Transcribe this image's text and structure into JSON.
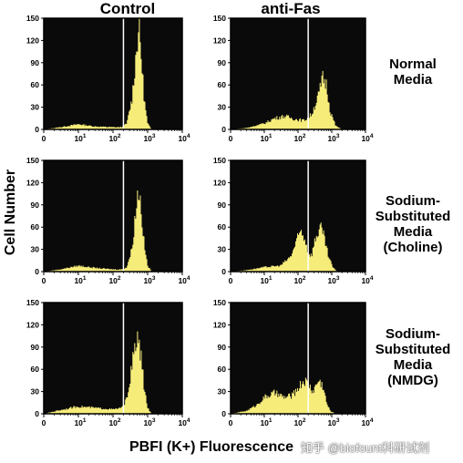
{
  "column_titles": [
    "Control",
    "anti-Fas"
  ],
  "row_labels": [
    "Normal\nMedia",
    "Sodium-\nSubstituted\nMedia\n(Choline)",
    "Sodium-\nSubstituted\nMedia\n(NMDG)"
  ],
  "x_axis_title": "PBFI (K+) Fluorescence",
  "y_axis_title": "Cell Number",
  "watermark": "知乎 @biofount科研试剂",
  "colors": {
    "background": "#0a0a0a",
    "histogram": "#f6ec7a",
    "gate": "#ffffff",
    "frame": "#000000"
  },
  "chart_data": [
    {
      "type": "area",
      "panel": "Control / Normal Media",
      "x_scale": "log",
      "xlim": [
        1,
        10000
      ],
      "ylim": [
        0,
        150
      ],
      "gate_x": 200,
      "yticks": [
        0,
        30,
        60,
        90,
        120,
        150
      ],
      "xticks": [
        "0",
        "10^1",
        "10^2",
        "10^3",
        "10^4"
      ],
      "x": [
        1,
        3,
        10,
        30,
        100,
        180,
        250,
        350,
        450,
        550,
        650,
        800,
        1000,
        1300,
        10000
      ],
      "y": [
        0,
        3,
        7,
        4,
        3,
        3,
        8,
        40,
        95,
        140,
        100,
        40,
        8,
        0,
        0
      ]
    },
    {
      "type": "area",
      "panel": "anti-Fas / Normal Media",
      "x_scale": "log",
      "xlim": [
        1,
        10000
      ],
      "ylim": [
        0,
        150
      ],
      "gate_x": 200,
      "yticks": [
        0,
        30,
        60,
        90,
        120,
        150
      ],
      "xticks": [
        "0",
        "10^1",
        "10^2",
        "10^3",
        "10^4"
      ],
      "x": [
        1,
        3,
        10,
        20,
        40,
        80,
        150,
        250,
        400,
        550,
        700,
        900,
        1300,
        2000,
        10000
      ],
      "y": [
        0,
        2,
        8,
        15,
        18,
        14,
        12,
        20,
        45,
        70,
        60,
        25,
        5,
        0,
        0
      ]
    },
    {
      "type": "area",
      "panel": "Control / Sodium-Substituted Media (Choline)",
      "x_scale": "log",
      "xlim": [
        1,
        10000
      ],
      "ylim": [
        0,
        150
      ],
      "gate_x": 200,
      "yticks": [
        0,
        30,
        60,
        90,
        120,
        150
      ],
      "xticks": [
        "0",
        "10^1",
        "10^2",
        "10^3",
        "10^4"
      ],
      "x": [
        1,
        3,
        10,
        30,
        100,
        180,
        250,
        350,
        450,
        550,
        650,
        800,
        1000,
        1300,
        10000
      ],
      "y": [
        0,
        3,
        8,
        5,
        3,
        3,
        6,
        30,
        80,
        115,
        85,
        35,
        8,
        0,
        0
      ]
    },
    {
      "type": "area",
      "panel": "anti-Fas / Sodium-Substituted Media (Choline)",
      "x_scale": "log",
      "xlim": [
        1,
        10000
      ],
      "ylim": [
        0,
        150
      ],
      "gate_x": 200,
      "yticks": [
        0,
        30,
        60,
        90,
        120,
        150
      ],
      "xticks": [
        "0",
        "10^1",
        "10^2",
        "10^3",
        "10^4"
      ],
      "x": [
        1,
        3,
        10,
        30,
        60,
        90,
        120,
        160,
        200,
        250,
        330,
        450,
        600,
        800,
        1100,
        1500,
        10000
      ],
      "y": [
        0,
        2,
        6,
        8,
        20,
        40,
        55,
        45,
        25,
        22,
        45,
        60,
        45,
        20,
        5,
        0,
        0
      ]
    },
    {
      "type": "area",
      "panel": "Control / Sodium-Substituted Media (NMDG)",
      "x_scale": "log",
      "xlim": [
        1,
        10000
      ],
      "ylim": [
        0,
        150
      ],
      "gate_x": 200,
      "yticks": [
        0,
        30,
        60,
        90,
        120,
        150
      ],
      "xticks": [
        "0",
        "10^1",
        "10^2",
        "10^3",
        "10^4"
      ],
      "x": [
        1,
        3,
        10,
        30,
        100,
        180,
        250,
        330,
        430,
        530,
        650,
        800,
        1000,
        1300,
        10000
      ],
      "y": [
        0,
        5,
        10,
        8,
        6,
        8,
        20,
        55,
        90,
        100,
        75,
        35,
        8,
        0,
        0
      ]
    },
    {
      "type": "area",
      "panel": "anti-Fas / Sodium-Substituted Media (NMDG)",
      "x_scale": "log",
      "xlim": [
        1,
        10000
      ],
      "ylim": [
        0,
        150
      ],
      "gate_x": 200,
      "yticks": [
        0,
        30,
        60,
        90,
        120,
        150
      ],
      "xticks": [
        "0",
        "10^1",
        "10^2",
        "10^3",
        "10^4"
      ],
      "x": [
        1,
        3,
        6,
        10,
        20,
        40,
        70,
        100,
        150,
        200,
        280,
        400,
        550,
        700,
        900,
        1300,
        10000
      ],
      "y": [
        0,
        4,
        12,
        22,
        28,
        22,
        25,
        35,
        45,
        40,
        30,
        45,
        38,
        15,
        4,
        0,
        0
      ]
    }
  ]
}
